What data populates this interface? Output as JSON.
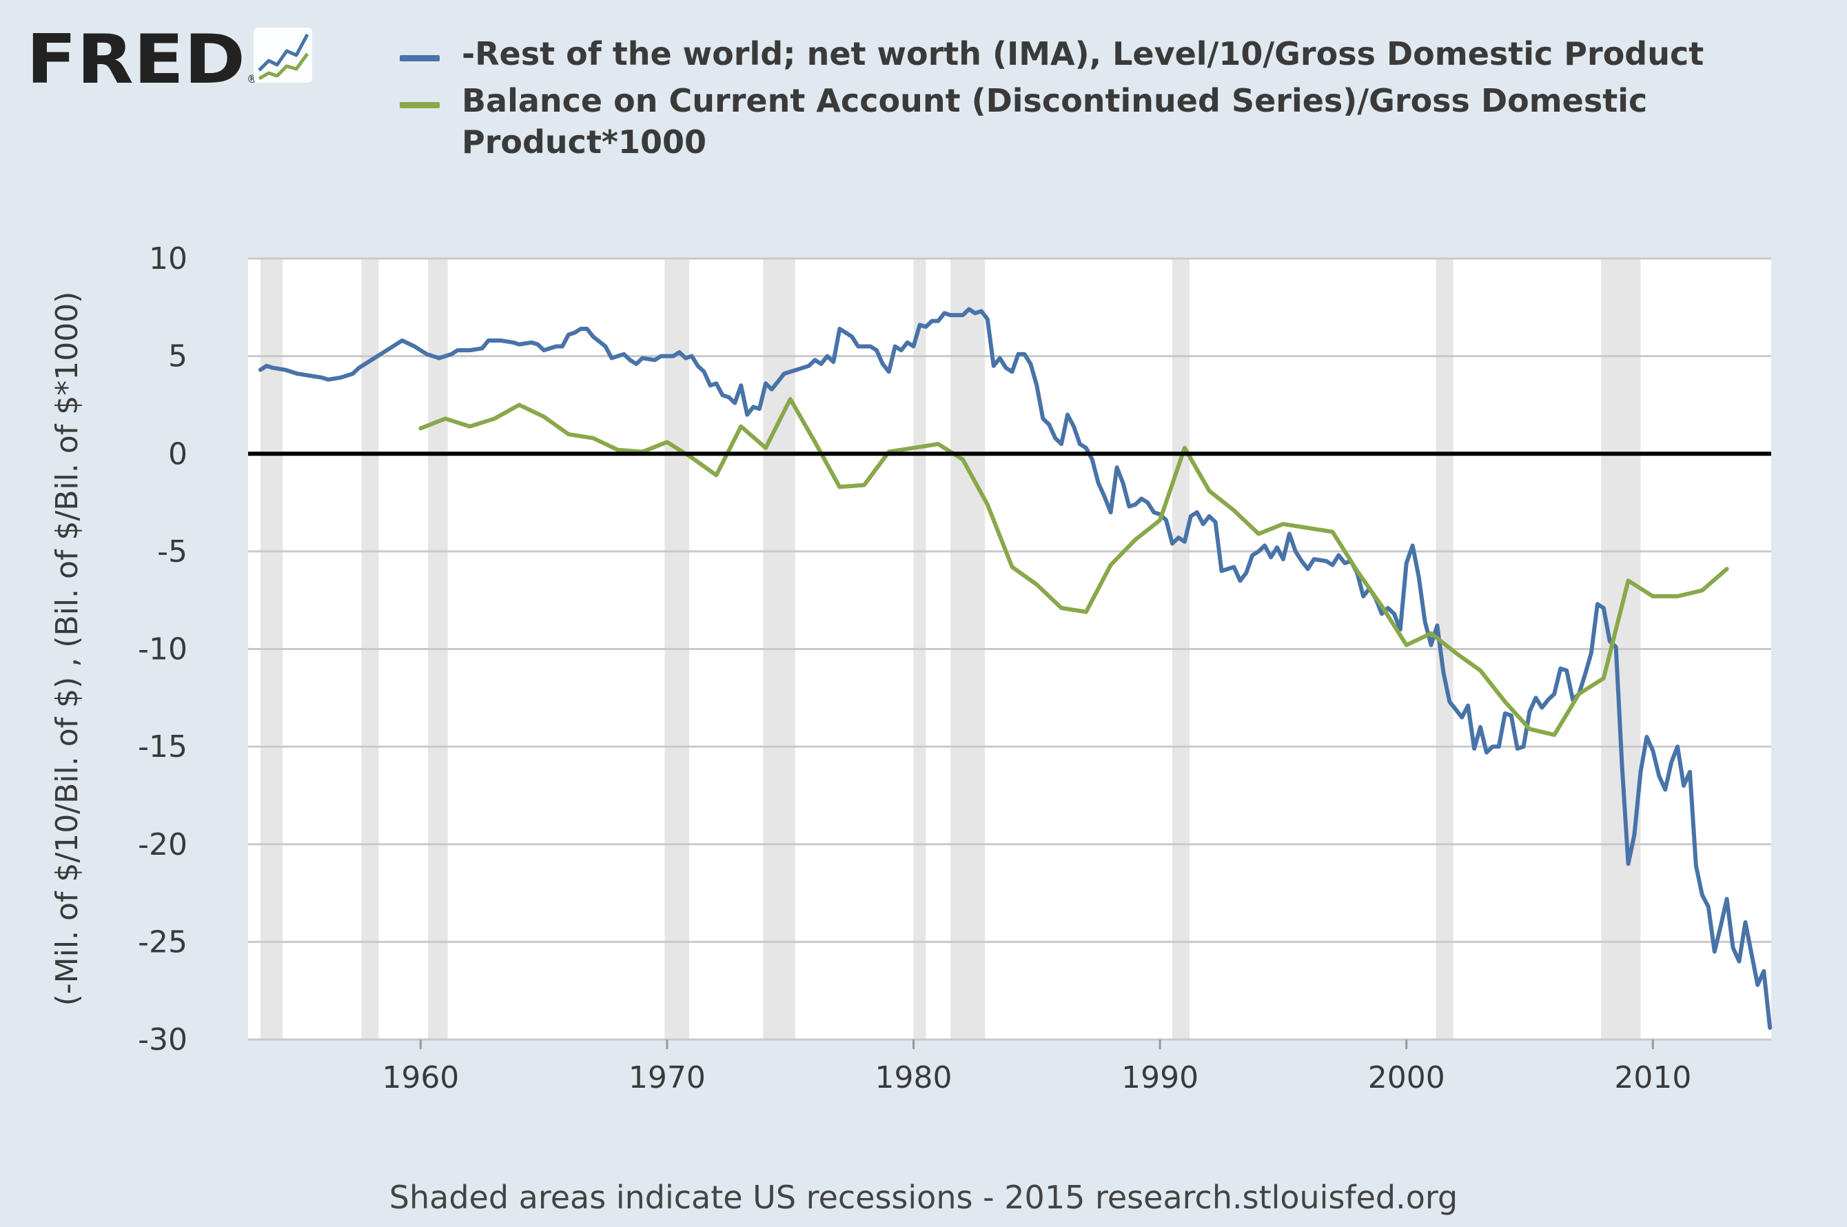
{
  "brand": {
    "name": "FRED",
    "registered_mark": "®"
  },
  "colors": {
    "background": "#e1e9f0",
    "plot_bg": "#ffffff",
    "grid": "#c9c9c9",
    "recession": "#e6e6e6",
    "zero_line": "#000000",
    "series_blue": "#4873a8",
    "series_green": "#88a84a",
    "text": "#3a3a3a"
  },
  "footer": {
    "text": "Shaded areas indicate US recessions - 2015 research.stlouisfed.org"
  },
  "chart_data": {
    "type": "line",
    "title": "",
    "xlabel": "",
    "ylabel": "(-Mil. of $/10/Bil. of $) , (Bil. of $/Bil. of $*1000)",
    "xlim": [
      1953.0,
      2014.8
    ],
    "ylim": [
      -30,
      10
    ],
    "x_ticks": [
      1960,
      1970,
      1980,
      1990,
      2000,
      2010
    ],
    "x_tick_labels": [
      "1960",
      "1970",
      "1980",
      "1990",
      "2000",
      "2010"
    ],
    "y_ticks": [
      10,
      5,
      0,
      -5,
      -10,
      -15,
      -20,
      -25,
      -30
    ],
    "y_tick_labels": [
      "10",
      "5",
      "0",
      "-5",
      "-10",
      "-15",
      "-20",
      "-25",
      "-30"
    ],
    "zero_line": 0,
    "grid": true,
    "legend_position": "top",
    "recessions": [
      [
        1953.5,
        1954.4
      ],
      [
        1957.6,
        1958.3
      ],
      [
        1960.3,
        1961.1
      ],
      [
        1969.9,
        1970.9
      ],
      [
        1973.9,
        1975.2
      ],
      [
        1980.0,
        1980.5
      ],
      [
        1981.5,
        1982.9
      ],
      [
        1990.5,
        1991.2
      ],
      [
        2001.2,
        2001.9
      ],
      [
        2007.9,
        2009.5
      ]
    ],
    "series": [
      {
        "name": "-Rest of the world; net worth (IMA), Level/10/Gross Domestic Product",
        "color": "#4873a8",
        "points": [
          [
            1953.5,
            4.3
          ],
          [
            1953.75,
            4.5
          ],
          [
            1954.0,
            4.4
          ],
          [
            1954.5,
            4.3
          ],
          [
            1955.0,
            4.1
          ],
          [
            1955.5,
            4.0
          ],
          [
            1956.0,
            3.9
          ],
          [
            1956.25,
            3.8
          ],
          [
            1956.75,
            3.9
          ],
          [
            1957.25,
            4.1
          ],
          [
            1957.5,
            4.4
          ],
          [
            1958.0,
            4.8
          ],
          [
            1958.5,
            5.2
          ],
          [
            1959.0,
            5.6
          ],
          [
            1959.25,
            5.8
          ],
          [
            1959.75,
            5.5
          ],
          [
            1960.25,
            5.1
          ],
          [
            1960.75,
            4.9
          ],
          [
            1961.25,
            5.1
          ],
          [
            1961.5,
            5.3
          ],
          [
            1962.0,
            5.3
          ],
          [
            1962.5,
            5.4
          ],
          [
            1962.75,
            5.8
          ],
          [
            1963.25,
            5.8
          ],
          [
            1963.75,
            5.7
          ],
          [
            1964.0,
            5.6
          ],
          [
            1964.5,
            5.7
          ],
          [
            1964.75,
            5.6
          ],
          [
            1965.0,
            5.3
          ],
          [
            1965.5,
            5.5
          ],
          [
            1965.75,
            5.5
          ],
          [
            1966.0,
            6.1
          ],
          [
            1966.25,
            6.2
          ],
          [
            1966.5,
            6.4
          ],
          [
            1966.75,
            6.4
          ],
          [
            1967.0,
            6.0
          ],
          [
            1967.5,
            5.5
          ],
          [
            1967.75,
            4.9
          ],
          [
            1968.25,
            5.1
          ],
          [
            1968.5,
            4.8
          ],
          [
            1968.75,
            4.6
          ],
          [
            1969.0,
            4.9
          ],
          [
            1969.5,
            4.8
          ],
          [
            1969.75,
            5.0
          ],
          [
            1970.25,
            5.0
          ],
          [
            1970.5,
            5.2
          ],
          [
            1970.75,
            4.9
          ],
          [
            1971.0,
            5.0
          ],
          [
            1971.25,
            4.5
          ],
          [
            1971.5,
            4.2
          ],
          [
            1971.75,
            3.5
          ],
          [
            1972.0,
            3.6
          ],
          [
            1972.25,
            3.0
          ],
          [
            1972.5,
            2.9
          ],
          [
            1972.75,
            2.6
          ],
          [
            1973.0,
            3.5
          ],
          [
            1973.25,
            2.0
          ],
          [
            1973.5,
            2.4
          ],
          [
            1973.75,
            2.3
          ],
          [
            1974.0,
            3.6
          ],
          [
            1974.25,
            3.3
          ],
          [
            1974.75,
            4.1
          ],
          [
            1975.25,
            4.3
          ],
          [
            1975.75,
            4.5
          ],
          [
            1976.0,
            4.8
          ],
          [
            1976.25,
            4.6
          ],
          [
            1976.5,
            5.0
          ],
          [
            1976.75,
            4.7
          ],
          [
            1977.0,
            6.4
          ],
          [
            1977.5,
            6.0
          ],
          [
            1977.75,
            5.5
          ],
          [
            1978.25,
            5.5
          ],
          [
            1978.5,
            5.3
          ],
          [
            1978.75,
            4.6
          ],
          [
            1979.0,
            4.2
          ],
          [
            1979.25,
            5.5
          ],
          [
            1979.5,
            5.3
          ],
          [
            1979.75,
            5.7
          ],
          [
            1980.0,
            5.5
          ],
          [
            1980.25,
            6.6
          ],
          [
            1980.5,
            6.5
          ],
          [
            1980.75,
            6.8
          ],
          [
            1981.0,
            6.8
          ],
          [
            1981.25,
            7.2
          ],
          [
            1981.5,
            7.1
          ],
          [
            1982.0,
            7.1
          ],
          [
            1982.25,
            7.4
          ],
          [
            1982.5,
            7.2
          ],
          [
            1982.75,
            7.3
          ],
          [
            1983.0,
            6.9
          ],
          [
            1983.25,
            4.5
          ],
          [
            1983.5,
            4.9
          ],
          [
            1983.75,
            4.4
          ],
          [
            1984.0,
            4.2
          ],
          [
            1984.25,
            5.1
          ],
          [
            1984.5,
            5.1
          ],
          [
            1984.75,
            4.6
          ],
          [
            1985.0,
            3.5
          ],
          [
            1985.25,
            1.8
          ],
          [
            1985.5,
            1.5
          ],
          [
            1985.75,
            0.8
          ],
          [
            1986.0,
            0.5
          ],
          [
            1986.25,
            2.0
          ],
          [
            1986.5,
            1.4
          ],
          [
            1986.75,
            0.5
          ],
          [
            1987.0,
            0.3
          ],
          [
            1987.25,
            -0.3
          ],
          [
            1987.5,
            -1.5
          ],
          [
            1987.75,
            -2.2
          ],
          [
            1988.0,
            -3.0
          ],
          [
            1988.25,
            -0.7
          ],
          [
            1988.5,
            -1.5
          ],
          [
            1988.75,
            -2.7
          ],
          [
            1989.0,
            -2.6
          ],
          [
            1989.25,
            -2.3
          ],
          [
            1989.5,
            -2.5
          ],
          [
            1989.75,
            -3.0
          ],
          [
            1990.0,
            -3.1
          ],
          [
            1990.25,
            -3.4
          ],
          [
            1990.5,
            -4.6
          ],
          [
            1990.75,
            -4.3
          ],
          [
            1991.0,
            -4.5
          ],
          [
            1991.25,
            -3.2
          ],
          [
            1991.5,
            -3.0
          ],
          [
            1991.75,
            -3.6
          ],
          [
            1992.0,
            -3.2
          ],
          [
            1992.25,
            -3.5
          ],
          [
            1992.5,
            -6.0
          ],
          [
            1992.75,
            -5.9
          ],
          [
            1993.0,
            -5.8
          ],
          [
            1993.25,
            -6.5
          ],
          [
            1993.5,
            -6.1
          ],
          [
            1993.75,
            -5.2
          ],
          [
            1994.0,
            -5.0
          ],
          [
            1994.25,
            -4.7
          ],
          [
            1994.5,
            -5.3
          ],
          [
            1994.75,
            -4.8
          ],
          [
            1995.0,
            -5.4
          ],
          [
            1995.25,
            -4.1
          ],
          [
            1995.5,
            -5.0
          ],
          [
            1995.75,
            -5.5
          ],
          [
            1996.0,
            -5.9
          ],
          [
            1996.25,
            -5.4
          ],
          [
            1996.75,
            -5.5
          ],
          [
            1997.0,
            -5.7
          ],
          [
            1997.25,
            -5.2
          ],
          [
            1997.5,
            -5.6
          ],
          [
            1997.75,
            -5.5
          ],
          [
            1998.0,
            -6.1
          ],
          [
            1998.25,
            -7.3
          ],
          [
            1998.5,
            -6.9
          ],
          [
            1998.75,
            -7.4
          ],
          [
            1999.0,
            -8.2
          ],
          [
            1999.25,
            -7.9
          ],
          [
            1999.5,
            -8.2
          ],
          [
            1999.75,
            -9.0
          ],
          [
            2000.0,
            -5.6
          ],
          [
            2000.25,
            -4.7
          ],
          [
            2000.5,
            -6.3
          ],
          [
            2000.75,
            -8.6
          ],
          [
            2001.0,
            -9.8
          ],
          [
            2001.25,
            -8.8
          ],
          [
            2001.5,
            -11.2
          ],
          [
            2001.75,
            -12.7
          ],
          [
            2002.0,
            -13.1
          ],
          [
            2002.25,
            -13.5
          ],
          [
            2002.5,
            -12.9
          ],
          [
            2002.75,
            -15.1
          ],
          [
            2003.0,
            -14.0
          ],
          [
            2003.25,
            -15.3
          ],
          [
            2003.5,
            -15.0
          ],
          [
            2003.75,
            -15.0
          ],
          [
            2004.0,
            -13.3
          ],
          [
            2004.25,
            -13.4
          ],
          [
            2004.5,
            -15.1
          ],
          [
            2004.75,
            -15.0
          ],
          [
            2005.0,
            -13.2
          ],
          [
            2005.25,
            -12.5
          ],
          [
            2005.5,
            -13.0
          ],
          [
            2005.75,
            -12.6
          ],
          [
            2006.0,
            -12.3
          ],
          [
            2006.25,
            -11.0
          ],
          [
            2006.5,
            -11.1
          ],
          [
            2006.75,
            -12.6
          ],
          [
            2007.0,
            -12.3
          ],
          [
            2007.25,
            -11.3
          ],
          [
            2007.5,
            -10.2
          ],
          [
            2007.75,
            -7.7
          ],
          [
            2008.0,
            -7.9
          ],
          [
            2008.25,
            -9.6
          ],
          [
            2008.5,
            -9.9
          ],
          [
            2008.75,
            -16.0
          ],
          [
            2009.0,
            -21.0
          ],
          [
            2009.25,
            -19.5
          ],
          [
            2009.5,
            -16.3
          ],
          [
            2009.75,
            -14.5
          ],
          [
            2010.0,
            -15.2
          ],
          [
            2010.25,
            -16.5
          ],
          [
            2010.5,
            -17.2
          ],
          [
            2010.75,
            -15.8
          ],
          [
            2011.0,
            -15.0
          ],
          [
            2011.25,
            -17.0
          ],
          [
            2011.5,
            -16.3
          ],
          [
            2011.75,
            -21.1
          ],
          [
            2012.0,
            -22.6
          ],
          [
            2012.25,
            -23.2
          ],
          [
            2012.5,
            -25.5
          ],
          [
            2012.75,
            -24.2
          ],
          [
            2013.0,
            -22.8
          ],
          [
            2013.25,
            -25.3
          ],
          [
            2013.5,
            -26.0
          ],
          [
            2013.75,
            -24.0
          ],
          [
            2014.0,
            -25.6
          ],
          [
            2014.25,
            -27.2
          ],
          [
            2014.5,
            -26.5
          ],
          [
            2014.75,
            -29.4
          ]
        ]
      },
      {
        "name": "Balance on Current Account (Discontinued Series)/Gross Domestic Product*1000",
        "color": "#88a84a",
        "points": [
          [
            1960,
            1.3
          ],
          [
            1961,
            1.8
          ],
          [
            1962,
            1.4
          ],
          [
            1963,
            1.8
          ],
          [
            1964,
            2.5
          ],
          [
            1965,
            1.9
          ],
          [
            1966,
            1.0
          ],
          [
            1967,
            0.8
          ],
          [
            1968,
            0.2
          ],
          [
            1969,
            0.1
          ],
          [
            1970,
            0.6
          ],
          [
            1971,
            -0.2
          ],
          [
            1972,
            -1.1
          ],
          [
            1973,
            1.4
          ],
          [
            1974,
            0.3
          ],
          [
            1975,
            2.8
          ],
          [
            1976,
            0.6
          ],
          [
            1977,
            -1.7
          ],
          [
            1978,
            -1.6
          ],
          [
            1979,
            0.1
          ],
          [
            1980,
            0.3
          ],
          [
            1981,
            0.5
          ],
          [
            1982,
            -0.3
          ],
          [
            1983,
            -2.6
          ],
          [
            1984,
            -5.8
          ],
          [
            1985,
            -6.7
          ],
          [
            1986,
            -7.9
          ],
          [
            1987,
            -8.1
          ],
          [
            1988,
            -5.7
          ],
          [
            1989,
            -4.4
          ],
          [
            1990,
            -3.4
          ],
          [
            1991,
            0.3
          ],
          [
            1992,
            -1.9
          ],
          [
            1993,
            -2.9
          ],
          [
            1994,
            -4.1
          ],
          [
            1995,
            -3.6
          ],
          [
            1996,
            -3.8
          ],
          [
            1997,
            -4.0
          ],
          [
            1998,
            -6.0
          ],
          [
            1999,
            -7.8
          ],
          [
            2000,
            -9.8
          ],
          [
            2001,
            -9.2
          ],
          [
            2002,
            -10.2
          ],
          [
            2003,
            -11.1
          ],
          [
            2004,
            -12.7
          ],
          [
            2005,
            -14.1
          ],
          [
            2006,
            -14.4
          ],
          [
            2007,
            -12.3
          ],
          [
            2008,
            -11.5
          ],
          [
            2009,
            -6.5
          ],
          [
            2010,
            -7.3
          ],
          [
            2011,
            -7.3
          ],
          [
            2012,
            -7.0
          ],
          [
            2013,
            -5.9
          ]
        ]
      }
    ]
  }
}
